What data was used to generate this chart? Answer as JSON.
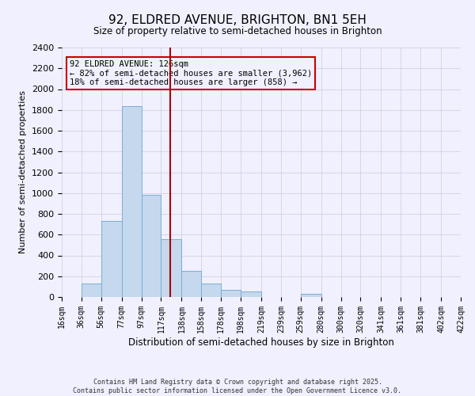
{
  "title": "92, ELDRED AVENUE, BRIGHTON, BN1 5EH",
  "subtitle": "Size of property relative to semi-detached houses in Brighton",
  "xlabel": "Distribution of semi-detached houses by size in Brighton",
  "ylabel": "Number of semi-detached properties",
  "bin_labels": [
    "16sqm",
    "36sqm",
    "56sqm",
    "77sqm",
    "97sqm",
    "117sqm",
    "138sqm",
    "158sqm",
    "178sqm",
    "198sqm",
    "219sqm",
    "239sqm",
    "259sqm",
    "280sqm",
    "300sqm",
    "320sqm",
    "341sqm",
    "361sqm",
    "381sqm",
    "402sqm",
    "422sqm"
  ],
  "bin_edges": [
    16,
    36,
    56,
    77,
    97,
    117,
    138,
    158,
    178,
    198,
    219,
    239,
    259,
    280,
    300,
    320,
    341,
    361,
    381,
    402,
    422
  ],
  "bar_heights": [
    0,
    130,
    730,
    1840,
    980,
    560,
    250,
    130,
    70,
    50,
    0,
    0,
    30,
    0,
    0,
    0,
    0,
    0,
    0,
    0,
    0
  ],
  "bar_color": "#c5d8ed",
  "bar_edge_color": "#7aaed6",
  "vline_x": 126,
  "vline_color": "#aa0000",
  "ylim": [
    0,
    2400
  ],
  "yticks": [
    0,
    200,
    400,
    600,
    800,
    1000,
    1200,
    1400,
    1600,
    1800,
    2000,
    2200,
    2400
  ],
  "annotation_title": "92 ELDRED AVENUE: 126sqm",
  "annotation_line1": "← 82% of semi-detached houses are smaller (3,962)",
  "annotation_line2": "18% of semi-detached houses are larger (858) →",
  "annotation_box_color": "#cc0000",
  "footnote1": "Contains HM Land Registry data © Crown copyright and database right 2025.",
  "footnote2": "Contains public sector information licensed under the Open Government Licence v3.0.",
  "bg_color": "#f0f0ff",
  "grid_color": "#ccccdd"
}
